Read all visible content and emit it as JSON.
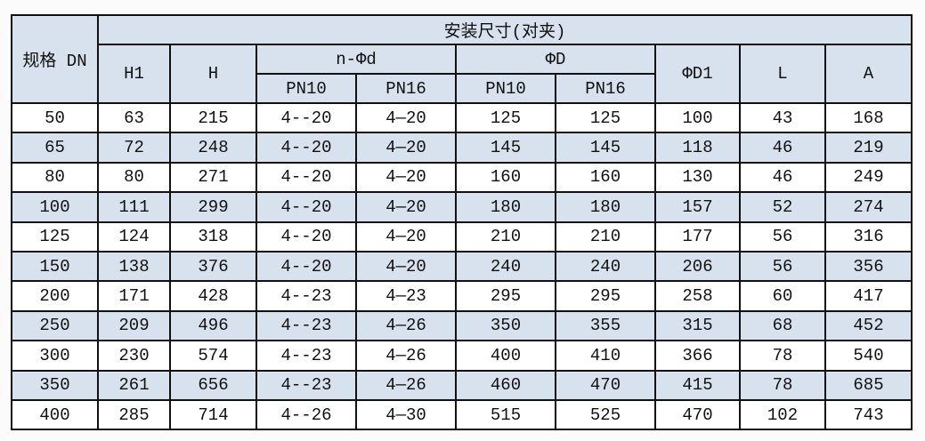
{
  "table": {
    "header": {
      "spec": "规格 DN",
      "group": "安装尺寸(对夹)",
      "h1": "H1",
      "h": "H",
      "nd": "n-Φd",
      "bigd": "ΦD",
      "d1": "ΦD1",
      "l": "L",
      "a": "A",
      "pn10": "PN10",
      "pn16": "PN16"
    },
    "colors": {
      "header_bg": "#d8e2ee",
      "alt_row_bg": "#d8e2ee",
      "border": "#111111"
    },
    "rows": [
      [
        "50",
        "63",
        "215",
        "4--20",
        "4—20",
        "125",
        "125",
        "100",
        "43",
        "168"
      ],
      [
        "65",
        "72",
        "248",
        "4--20",
        "4—20",
        "145",
        "145",
        "118",
        "46",
        "219"
      ],
      [
        "80",
        "80",
        "271",
        "4--20",
        "4—20",
        "160",
        "160",
        "130",
        "46",
        "249"
      ],
      [
        "100",
        "111",
        "299",
        "4--20",
        "4—20",
        "180",
        "180",
        "157",
        "52",
        "274"
      ],
      [
        "125",
        "124",
        "318",
        "4--20",
        "4—20",
        "210",
        "210",
        "177",
        "56",
        "316"
      ],
      [
        "150",
        "138",
        "376",
        "4--20",
        "4—20",
        "240",
        "240",
        "206",
        "56",
        "356"
      ],
      [
        "200",
        "171",
        "428",
        "4--23",
        "4—23",
        "295",
        "295",
        "258",
        "60",
        "417"
      ],
      [
        "250",
        "209",
        "496",
        "4--23",
        "4—26",
        "350",
        "355",
        "315",
        "68",
        "452"
      ],
      [
        "300",
        "230",
        "574",
        "4--23",
        "4—26",
        "400",
        "410",
        "366",
        "78",
        "540"
      ],
      [
        "350",
        "261",
        "656",
        "4--23",
        "4—26",
        "460",
        "470",
        "415",
        "78",
        "685"
      ],
      [
        "400",
        "285",
        "714",
        "4--26",
        "4—30",
        "515",
        "525",
        "470",
        "102",
        "743"
      ]
    ]
  }
}
